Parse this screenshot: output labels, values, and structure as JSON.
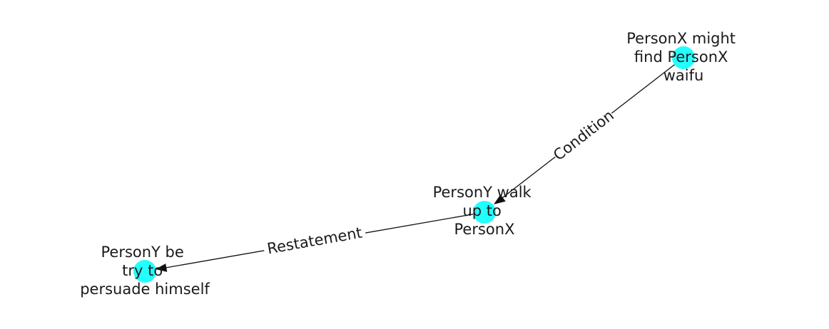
{
  "diagram": {
    "type": "directed-graph",
    "colors": {
      "node": "#22ffff",
      "edge": "#111111",
      "text": "#1a1a1a",
      "background": "#ffffff"
    },
    "nodes": [
      {
        "id": "n1",
        "label_lines": [
          "PersonX might",
          "find PersonX",
          "waifu"
        ]
      },
      {
        "id": "n2",
        "label_lines": [
          "PersonY walk",
          "up to",
          "PersonX"
        ]
      },
      {
        "id": "n3",
        "label_lines": [
          "PersonY be",
          "try to",
          "persuade himself"
        ]
      }
    ],
    "edges": [
      {
        "from": "n1",
        "to": "n2",
        "label": "Condition"
      },
      {
        "from": "n2",
        "to": "n3",
        "label": "Restatement"
      }
    ]
  }
}
